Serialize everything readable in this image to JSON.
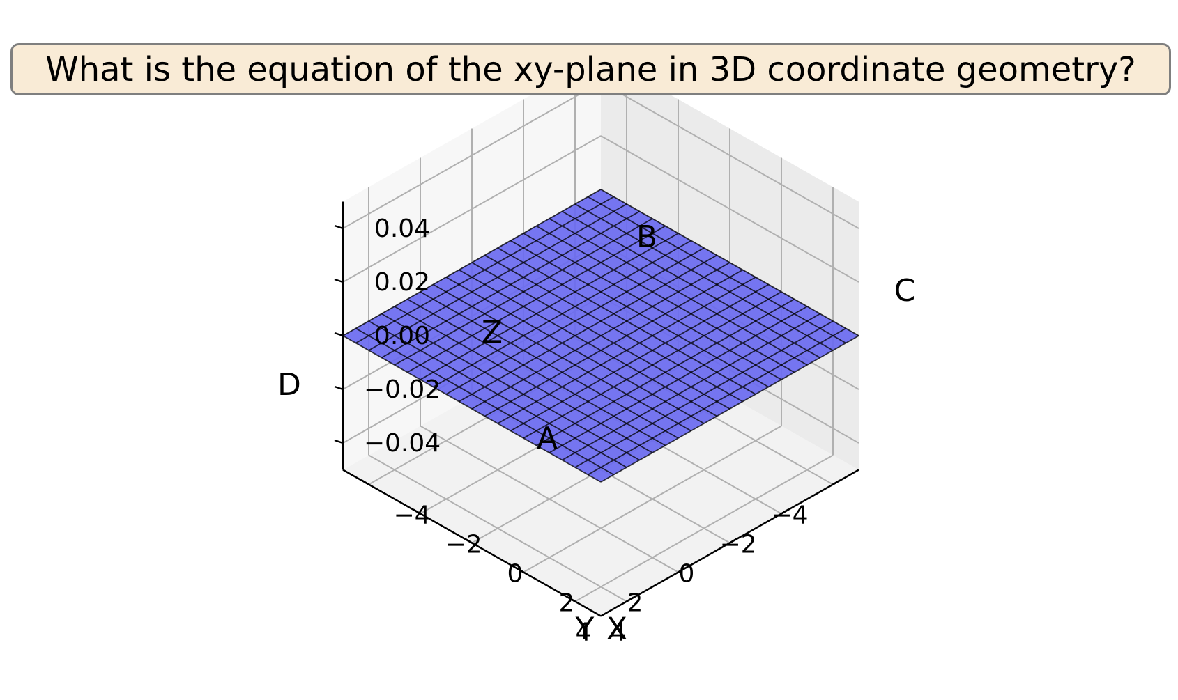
{
  "chart_data": {
    "type": "surface3d",
    "title": "What is the equation of the xy-plane in 3D coordinate geometry?",
    "xlabel": "X",
    "ylabel": "Y",
    "zlabel": "Z",
    "x_ticks": [
      -4,
      -2,
      0,
      2,
      4
    ],
    "y_ticks": [
      -4,
      -2,
      0,
      2,
      4
    ],
    "z_ticks": [
      -0.04,
      -0.02,
      0.0,
      0.02,
      0.04
    ],
    "x_tick_labels": [
      "−4",
      "−2",
      "0",
      "2",
      "4"
    ],
    "y_tick_labels": [
      "−4",
      "−2",
      "0",
      "2",
      "4"
    ],
    "z_tick_labels": [
      "−0.04",
      "−0.02",
      "0.00",
      "0.02",
      "0.04"
    ],
    "xlim": [
      -5,
      5
    ],
    "ylim": [
      -5,
      5
    ],
    "zlim": [
      -0.05,
      0.05
    ],
    "surface": {
      "equation_z": 0,
      "x_range": [
        -5,
        5
      ],
      "y_range": [
        -5,
        5
      ],
      "grid_divisions": 20,
      "color": "#6a6af0",
      "edge_color": "#000000"
    },
    "point_labels": [
      {
        "text": "A",
        "x": 5,
        "y": 5,
        "z": 0
      },
      {
        "text": "B",
        "x": -5,
        "y": -5,
        "z": 0
      },
      {
        "text": "C",
        "x": -5,
        "y": 5,
        "z": 0
      },
      {
        "text": "D",
        "x": 5,
        "y": -5,
        "z": 0
      }
    ],
    "grid": true,
    "pane_color": "#f2f2f2"
  }
}
